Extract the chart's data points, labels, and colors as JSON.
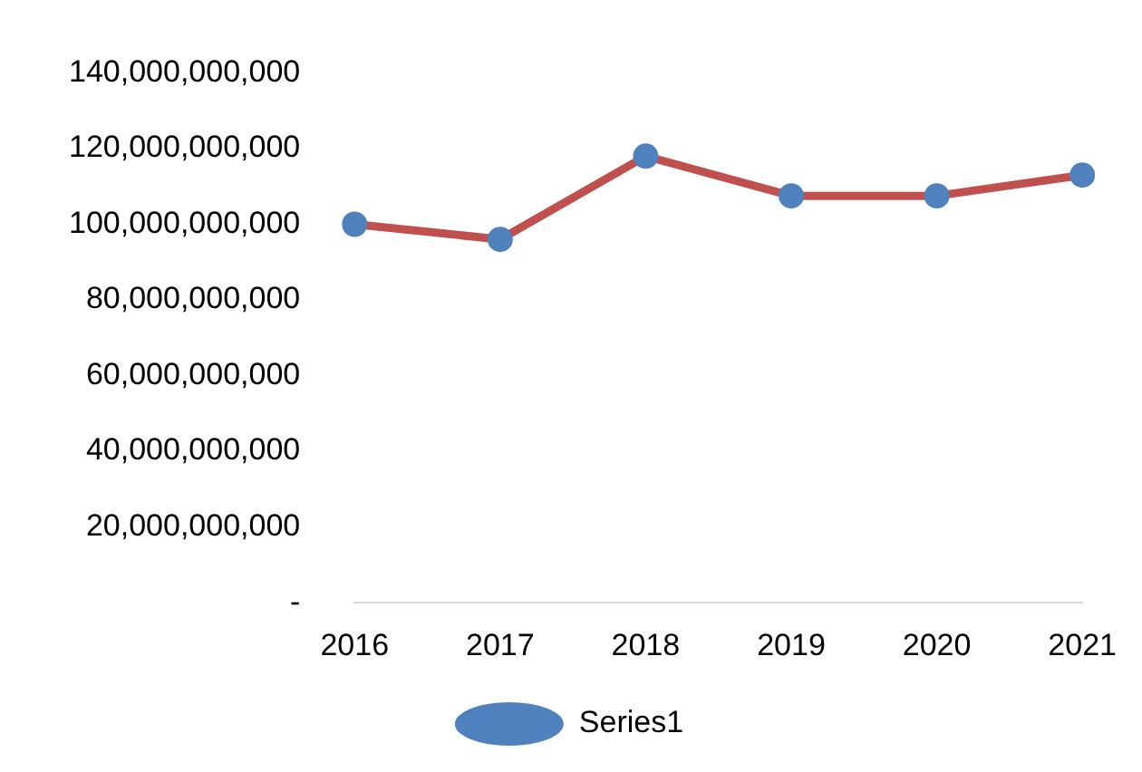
{
  "chart_data": {
    "type": "line",
    "categories": [
      "2016",
      "2017",
      "2018",
      "2019",
      "2020",
      "2021"
    ],
    "series": [
      {
        "name": "Series1",
        "color": "#c0504d",
        "colors": [
          "#4f81bd",
          "#4f81bd",
          "#4f81bd",
          "#4f81bd",
          "#4f81bd",
          "#4f81bd"
        ],
        "values": [
          100000000000,
          96000000000,
          118000000000,
          107500000000,
          107500000000,
          113000000000
        ]
      }
    ],
    "ylim": [
      0,
      140000000000
    ],
    "yticks": [
      {
        "value": 0,
        "label": "-"
      },
      {
        "value": 20000000000,
        "label": "20,000,000,000"
      },
      {
        "value": 40000000000,
        "label": "40,000,000,000"
      },
      {
        "value": 60000000000,
        "label": "60,000,000,000"
      },
      {
        "value": 80000000000,
        "label": "80,000,000,000"
      },
      {
        "value": 100000000000,
        "label": "100,000,000,000"
      },
      {
        "value": 120000000000,
        "label": "120,000,000,000"
      },
      {
        "value": 140000000000,
        "label": "140,000,000,000"
      }
    ],
    "grid": false,
    "legend": "bottom",
    "marker": "circle",
    "line_style": "solid"
  }
}
